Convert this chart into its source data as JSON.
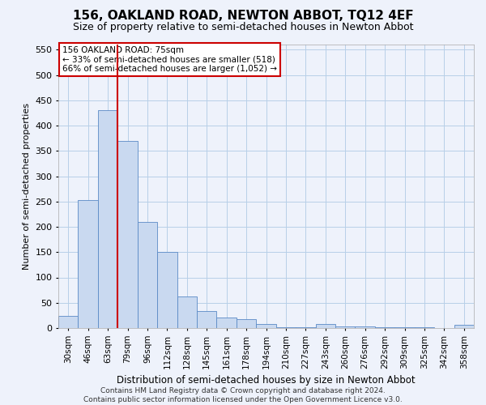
{
  "title": "156, OAKLAND ROAD, NEWTON ABBOT, TQ12 4EF",
  "subtitle": "Size of property relative to semi-detached houses in Newton Abbot",
  "xlabel": "Distribution of semi-detached houses by size in Newton Abbot",
  "ylabel": "Number of semi-detached properties",
  "footer_line1": "Contains HM Land Registry data © Crown copyright and database right 2024.",
  "footer_line2": "Contains public sector information licensed under the Open Government Licence v3.0.",
  "bin_labels": [
    "30sqm",
    "46sqm",
    "63sqm",
    "79sqm",
    "96sqm",
    "112sqm",
    "128sqm",
    "145sqm",
    "161sqm",
    "178sqm",
    "194sqm",
    "210sqm",
    "227sqm",
    "243sqm",
    "260sqm",
    "276sqm",
    "292sqm",
    "309sqm",
    "325sqm",
    "342sqm",
    "358sqm"
  ],
  "bar_values": [
    24,
    253,
    430,
    370,
    210,
    151,
    63,
    33,
    21,
    17,
    8,
    1,
    1,
    8,
    4,
    3,
    1,
    1,
    1,
    0,
    6
  ],
  "bar_color": "#c9d9f0",
  "bar_edgecolor": "#5a8ac6",
  "grid_color": "#b8cfe8",
  "background_color": "#eef2fb",
  "vline_color": "#cc0000",
  "vline_x": 2.5,
  "annotation_text_line1": "156 OAKLAND ROAD: 75sqm",
  "annotation_text_line2": "← 33% of semi-detached houses are smaller (518)",
  "annotation_text_line3": "66% of semi-detached houses are larger (1,052) →",
  "annotation_box_color": "#ffffff",
  "annotation_border_color": "#cc0000",
  "ylim": [
    0,
    560
  ],
  "yticks": [
    0,
    50,
    100,
    150,
    200,
    250,
    300,
    350,
    400,
    450,
    500,
    550
  ],
  "title_fontsize": 11,
  "subtitle_fontsize": 9,
  "ylabel_fontsize": 8,
  "xlabel_fontsize": 8.5,
  "tick_fontsize": 7.5,
  "ann_fontsize": 7.5,
  "footer_fontsize": 6.5
}
